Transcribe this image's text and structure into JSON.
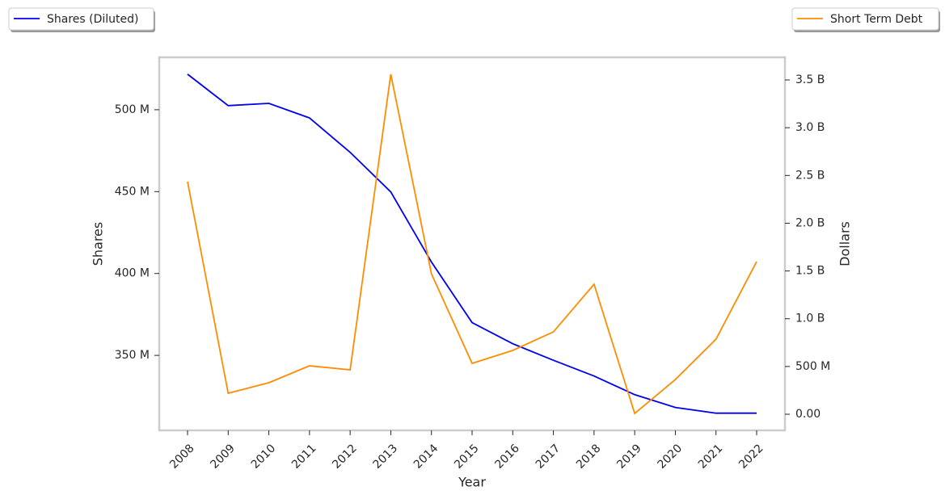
{
  "chart_data": {
    "type": "line",
    "x_label": "Year",
    "y_label": "Shares",
    "y2_label": "Dollars",
    "categories": [
      "2008",
      "2009",
      "2010",
      "2011",
      "2012",
      "2013",
      "2014",
      "2015",
      "2016",
      "2017",
      "2018",
      "2019",
      "2020",
      "2021",
      "2022"
    ],
    "series": [
      {
        "name": "Shares (Diluted)",
        "color": "#0000ee",
        "values": [
          521700000,
          502500000,
          503900000,
          495000000,
          474000000,
          449800000,
          407000000,
          370000000,
          357100000,
          347000000,
          337400000,
          326000000,
          318200000,
          314700000,
          314700000
        ]
      },
      {
        "name": "Short Term Debt",
        "color": "#ff8c00",
        "axis": "y2",
        "values": [
          2435000000,
          220000000,
          330000000,
          507000000,
          465000000,
          3560000000,
          1470000000,
          533000000,
          668000000,
          862000000,
          1361000000,
          8000000,
          363000000,
          786000000,
          1598000000
        ]
      }
    ],
    "ylim": [
      304200000,
      532000000
    ],
    "yticks": [
      {
        "value": 350000000,
        "label": "350 M"
      },
      {
        "value": 400000000,
        "label": "400 M"
      },
      {
        "value": 450000000,
        "label": "450 M"
      },
      {
        "value": 500000000,
        "label": "500 M"
      }
    ],
    "y2lim": [
      -169000000,
      3737000000
    ],
    "y2ticks": [
      {
        "value": 0,
        "label": "0.00"
      },
      {
        "value": 500000000,
        "label": "500 M"
      },
      {
        "value": 1000000000,
        "label": "1.0 B"
      },
      {
        "value": 1500000000,
        "label": "1.5 B"
      },
      {
        "value": 2000000000,
        "label": "2.0 B"
      },
      {
        "value": 2500000000,
        "label": "2.5 B"
      },
      {
        "value": 3000000000,
        "label": "3.0 B"
      },
      {
        "value": 3500000000,
        "label": "3.5 B"
      }
    ],
    "grid": false
  }
}
